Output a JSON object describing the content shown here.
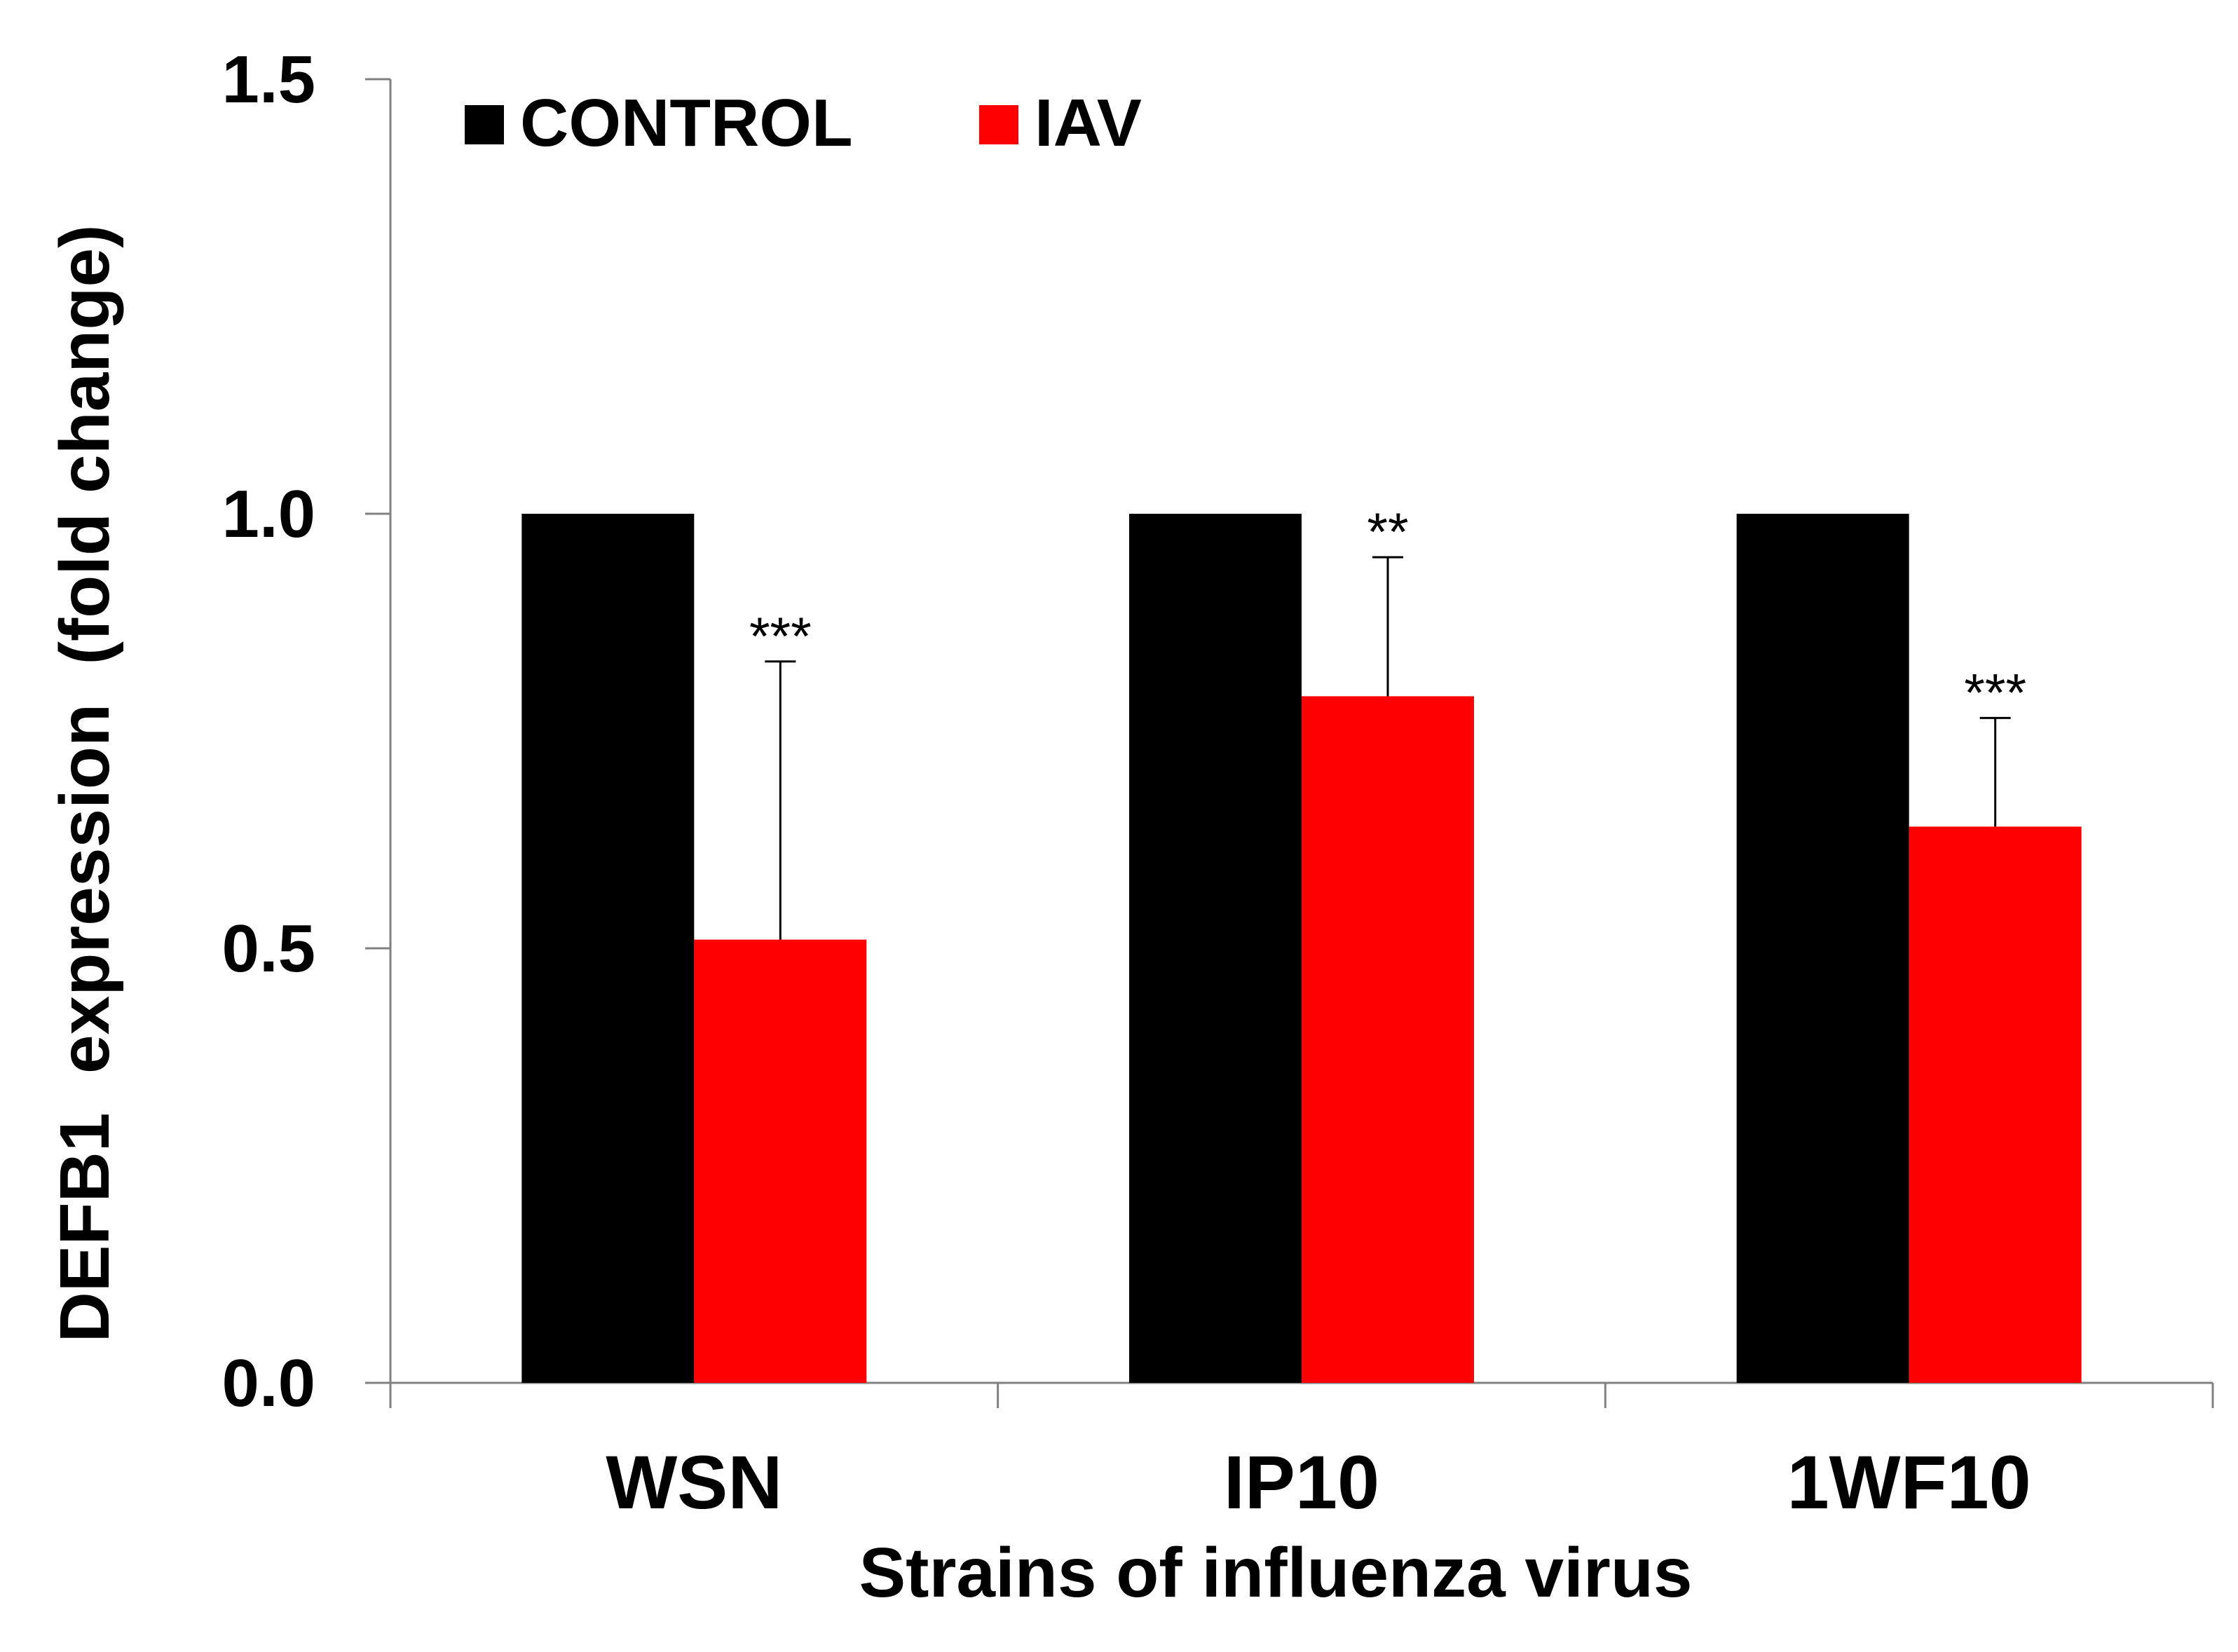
{
  "chart_data": {
    "type": "bar",
    "title": "",
    "xlabel": "Strains of influenza virus",
    "ylabel": "DEFB1  expression  (fold change)",
    "categories": [
      "WSN",
      "IP10",
      "1WF10"
    ],
    "ylim": [
      0,
      1.5
    ],
    "yticks": [
      0.0,
      0.5,
      1.0,
      1.5
    ],
    "ytick_labels": [
      "0.0",
      "0.5",
      "1.0",
      "1.5"
    ],
    "legend_position": "top-left",
    "grid": false,
    "series": [
      {
        "name": "CONTROL",
        "color": "#000000",
        "values": [
          1.0,
          1.0,
          1.0
        ],
        "errors": [
          0,
          0,
          0
        ]
      },
      {
        "name": "IAV",
        "color": "#ff0000",
        "values": [
          0.51,
          0.79,
          0.64
        ],
        "errors": [
          0.32,
          0.16,
          0.125
        ]
      }
    ],
    "annotations": [
      {
        "category": "WSN",
        "series": "IAV",
        "text": "***"
      },
      {
        "category": "IP10",
        "series": "IAV",
        "text": "**"
      },
      {
        "category": "1WF10",
        "series": "IAV",
        "text": "***"
      }
    ]
  }
}
